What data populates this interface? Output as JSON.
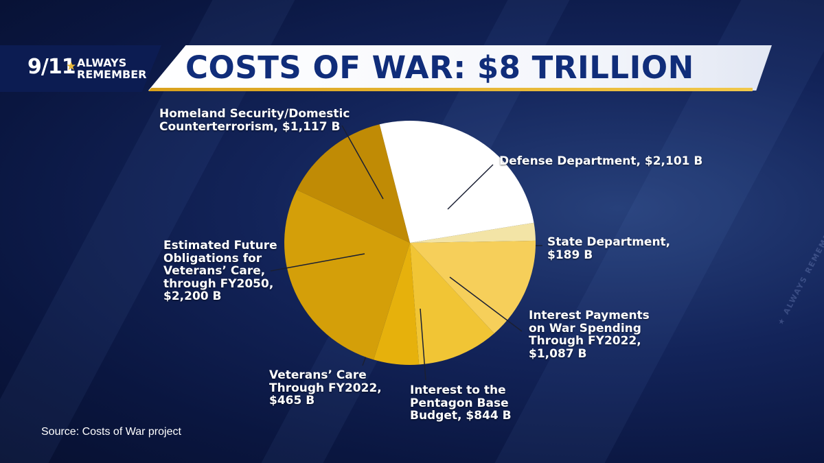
{
  "brand": {
    "number": "9/11",
    "star": "★",
    "line1": "ALWAYS",
    "line2": "REMEMBER"
  },
  "title": "COSTS OF WAR: $8 TRILLION",
  "source": "Source: Costs of War project",
  "watermark": "★ ALWAYS REMEMBER ★ ALWAYS REMEMBER ★ ALWAYS",
  "colors": {
    "title": "#102d7a",
    "gold": "#e0a81e",
    "background": "#0f1f55"
  },
  "chart_data": {
    "type": "pie",
    "title": "COSTS OF WAR: $8 TRILLION",
    "unit": "B",
    "slices": [
      {
        "name": "Defense Department",
        "value": 2101,
        "color": "#ffffff",
        "label_lines": [
          "Defense Department, $2,101 B"
        ]
      },
      {
        "name": "State Department",
        "value": 189,
        "color": "#f3e4a6",
        "label_lines": [
          "State Department,",
          "$189 B"
        ]
      },
      {
        "name": "Interest Payments on War Spending Through FY2022",
        "value": 1087,
        "color": "#f6cf5a",
        "label_lines": [
          "Interest Payments",
          "on War Spending",
          "Through FY2022,",
          "$1,087 B"
        ]
      },
      {
        "name": "Interest to the Pentagon Base Budget",
        "value": 844,
        "color": "#f1c535",
        "label_lines": [
          "Interest to the",
          "Pentagon Base",
          "Budget, $844 B"
        ]
      },
      {
        "name": "Veterans' Care Through FY2022",
        "value": 465,
        "color": "#e6b10c",
        "label_lines": [
          "Veterans’ Care",
          "Through FY2022,",
          "$465 B"
        ]
      },
      {
        "name": "Estimated Future Obligations for Veterans' Care, through FY2050",
        "value": 2200,
        "color": "#d49f09",
        "label_lines": [
          "Estimated Future",
          "Obligations for",
          "Veterans’ Care,",
          "through FY2050,",
          "$2,200 B"
        ]
      },
      {
        "name": "Homeland Security/Domestic Counterterrorism",
        "value": 1117,
        "color": "#c08b05",
        "label_lines": [
          "Homeland Security/Domestic",
          "Counterterrorism, $1,117 B"
        ]
      }
    ]
  }
}
